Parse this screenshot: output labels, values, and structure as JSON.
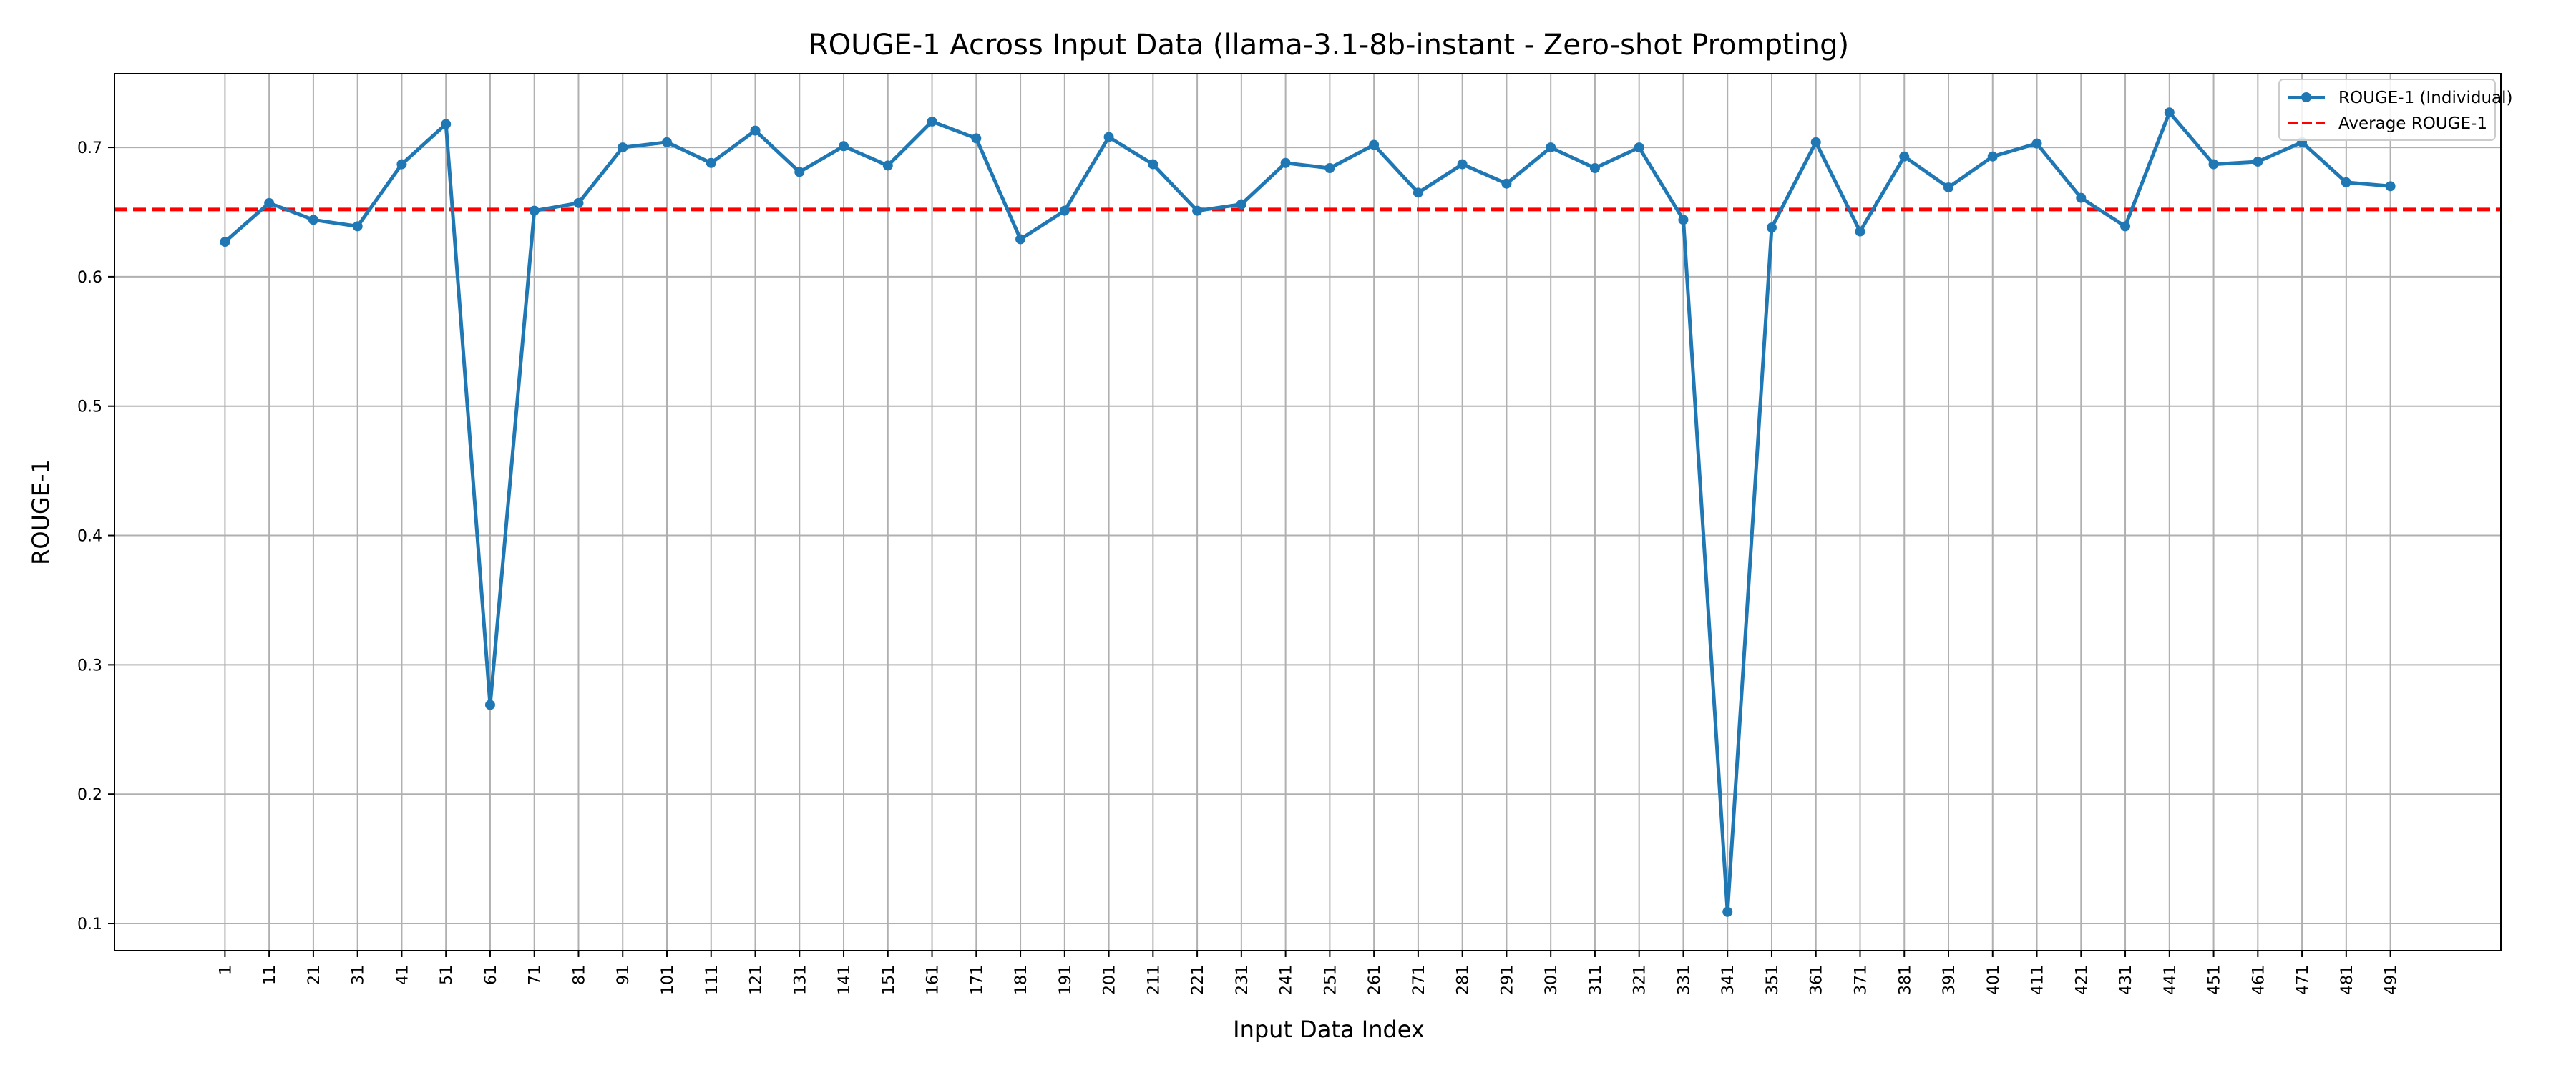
{
  "chart_data": {
    "type": "line",
    "title": "ROUGE-1 Across Input Data (llama-3.1-8b-instant - Zero-shot Prompting)",
    "xlabel": "Input Data Index",
    "ylabel": "ROUGE-1",
    "x": [
      1,
      11,
      21,
      31,
      41,
      51,
      61,
      71,
      81,
      91,
      101,
      111,
      121,
      131,
      141,
      151,
      161,
      171,
      181,
      191,
      201,
      211,
      221,
      231,
      241,
      251,
      261,
      271,
      281,
      291,
      301,
      311,
      321,
      331,
      341,
      351,
      361,
      371,
      381,
      391,
      401,
      411,
      421,
      431,
      441,
      451,
      461,
      471,
      481,
      491
    ],
    "x_tick_labels": [
      "1",
      "11",
      "21",
      "31",
      "41",
      "51",
      "61",
      "71",
      "81",
      "91",
      "101",
      "111",
      "121",
      "131",
      "141",
      "151",
      "161",
      "171",
      "181",
      "191",
      "201",
      "211",
      "221",
      "231",
      "241",
      "251",
      "261",
      "271",
      "281",
      "291",
      "301",
      "311",
      "321",
      "331",
      "341",
      "351",
      "361",
      "371",
      "381",
      "391",
      "401",
      "411",
      "421",
      "431",
      "441",
      "451",
      "461",
      "471",
      "481",
      "491"
    ],
    "y_ticks": [
      0.1,
      0.2,
      0.3,
      0.4,
      0.5,
      0.6,
      0.7
    ],
    "y_tick_labels": [
      "0.1",
      "0.2",
      "0.3",
      "0.4",
      "0.5",
      "0.6",
      "0.7"
    ],
    "xlim": [
      -24,
      516
    ],
    "ylim": [
      0.079,
      0.757
    ],
    "grid": true,
    "legend_position": "top-right",
    "series": [
      {
        "name": "ROUGE-1 (Individual)",
        "color": "#1f77b4",
        "style": "solid-with-markers",
        "values": [
          0.627,
          0.657,
          0.644,
          0.639,
          0.687,
          0.718,
          0.269,
          0.651,
          0.657,
          0.7,
          0.704,
          0.688,
          0.713,
          0.681,
          0.701,
          0.686,
          0.72,
          0.707,
          0.629,
          0.651,
          0.708,
          0.687,
          0.651,
          0.656,
          0.688,
          0.684,
          0.702,
          0.665,
          0.687,
          0.672,
          0.7,
          0.684,
          0.7,
          0.644,
          0.109,
          0.638,
          0.704,
          0.635,
          0.693,
          0.669,
          0.693,
          0.703,
          0.661,
          0.639,
          0.727,
          0.687,
          0.689,
          0.704,
          0.673,
          0.67
        ]
      },
      {
        "name": "Average ROUGE-1",
        "color": "#ff0000",
        "style": "dashed",
        "value": 0.652
      }
    ]
  }
}
